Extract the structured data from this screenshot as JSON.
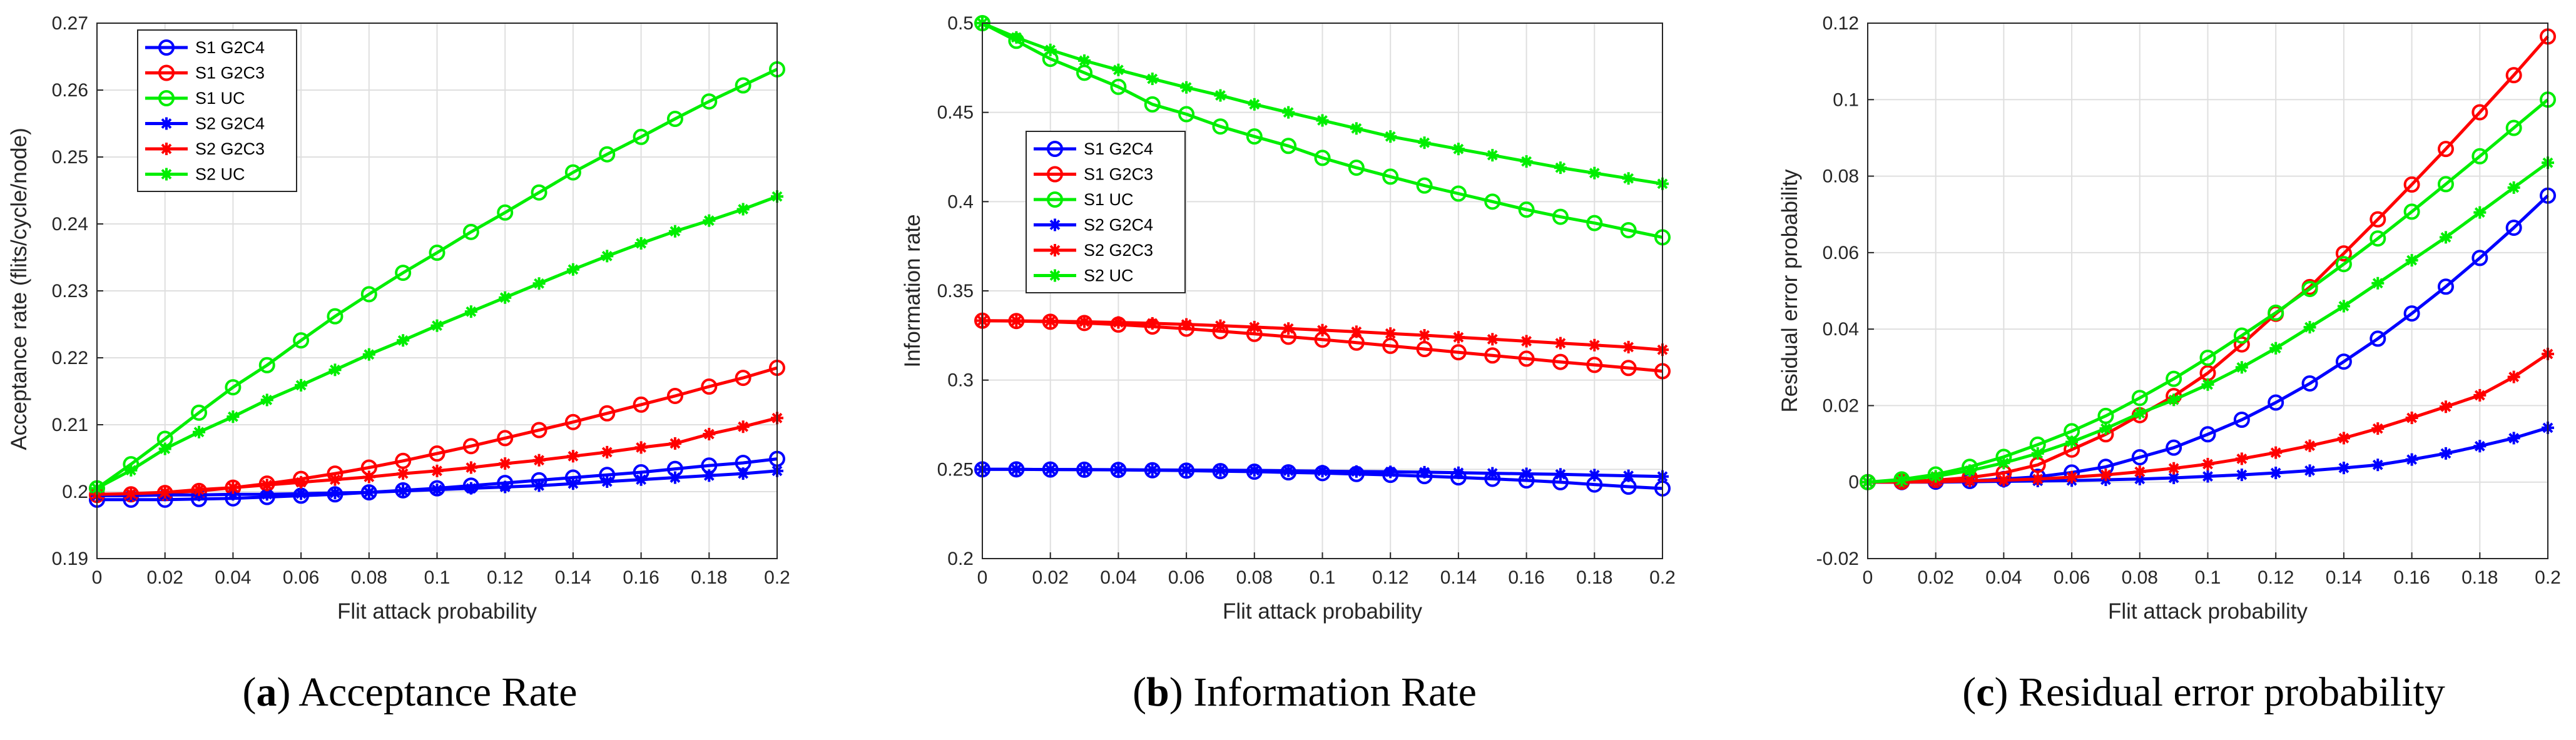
{
  "figure": {
    "x_values": [
      0,
      0.01,
      0.02,
      0.03,
      0.04,
      0.05,
      0.06,
      0.07,
      0.08,
      0.09,
      0.1,
      0.11,
      0.12,
      0.13,
      0.14,
      0.15,
      0.16,
      0.17,
      0.18,
      0.19,
      0.2
    ]
  },
  "chart_data": [
    {
      "type": "line",
      "panel_label": "a",
      "title": "Acceptance Rate",
      "xlabel": "Flit attack probability",
      "ylabel": "Acceptance rate (flits/cycle/node)",
      "xlim": [
        0,
        0.2
      ],
      "ylim": [
        0.19,
        0.27
      ],
      "xticks": [
        "0",
        "0.02",
        "0.04",
        "0.06",
        "0.08",
        "0.1",
        "0.12",
        "0.14",
        "0.16",
        "0.18",
        "0.2"
      ],
      "yticks": [
        "0.19",
        "0.2",
        "0.21",
        "0.22",
        "0.23",
        "0.24",
        "0.25",
        "0.26",
        "0.27"
      ],
      "grid": true,
      "legend_position": "top-left",
      "series": [
        {
          "name": "S1 G2C4",
          "color": "#0000ff",
          "marker": "circle",
          "values": [
            0.1988,
            0.1988,
            0.1988,
            0.1989,
            0.199,
            0.1992,
            0.1994,
            0.1996,
            0.1999,
            0.2002,
            0.2005,
            0.2009,
            0.2013,
            0.2017,
            0.2021,
            0.2025,
            0.2029,
            0.2034,
            0.2039,
            0.2043,
            0.2049
          ]
        },
        {
          "name": "S1 G2C3",
          "color": "#ff0000",
          "marker": "circle",
          "values": [
            0.1995,
            0.1996,
            0.1998,
            0.2001,
            0.2006,
            0.2012,
            0.2019,
            0.2027,
            0.2036,
            0.2046,
            0.2057,
            0.2068,
            0.208,
            0.2092,
            0.2104,
            0.2117,
            0.213,
            0.2143,
            0.2157,
            0.217,
            0.2185
          ]
        },
        {
          "name": "S1 UC",
          "color": "#00ee00",
          "marker": "circle",
          "values": [
            0.2005,
            0.2041,
            0.2079,
            0.2118,
            0.2156,
            0.2189,
            0.2226,
            0.2262,
            0.2295,
            0.2327,
            0.2357,
            0.2388,
            0.2417,
            0.2447,
            0.2477,
            0.2504,
            0.253,
            0.2557,
            0.2583,
            0.2607,
            0.2631
          ]
        },
        {
          "name": "S2 G2C4",
          "color": "#0000ff",
          "marker": "asterisk",
          "values": [
            0.1994,
            0.1994,
            0.1995,
            0.1995,
            0.1996,
            0.1996,
            0.1997,
            0.1998,
            0.1999,
            0.2001,
            0.2003,
            0.2005,
            0.2007,
            0.2009,
            0.2012,
            0.2015,
            0.2018,
            0.2021,
            0.2024,
            0.2027,
            0.2031
          ]
        },
        {
          "name": "S2 G2C3",
          "color": "#ff0000",
          "marker": "asterisk",
          "values": [
            0.1996,
            0.1997,
            0.1999,
            0.2003,
            0.2006,
            0.201,
            0.2014,
            0.2018,
            0.2022,
            0.2027,
            0.2031,
            0.2036,
            0.2042,
            0.2047,
            0.2053,
            0.2059,
            0.2066,
            0.2072,
            0.2086,
            0.2097,
            0.211
          ]
        },
        {
          "name": "S2 UC",
          "color": "#00ee00",
          "marker": "asterisk",
          "values": [
            0.2005,
            0.2032,
            0.2064,
            0.2089,
            0.2112,
            0.2137,
            0.2159,
            0.2182,
            0.2205,
            0.2226,
            0.2248,
            0.2269,
            0.229,
            0.2311,
            0.2332,
            0.2352,
            0.2371,
            0.2389,
            0.2405,
            0.2422,
            0.2441
          ]
        }
      ]
    },
    {
      "type": "line",
      "panel_label": "b",
      "title": "Information Rate",
      "xlabel": "Flit attack probability",
      "ylabel": "Information rate",
      "xlim": [
        0,
        0.2
      ],
      "ylim": [
        0.2,
        0.5
      ],
      "xticks": [
        "0",
        "0.02",
        "0.04",
        "0.06",
        "0.08",
        "0.1",
        "0.12",
        "0.14",
        "0.16",
        "0.18",
        "0.2"
      ],
      "yticks": [
        "0.2",
        "0.25",
        "0.3",
        "0.35",
        "0.4",
        "0.45",
        "0.5"
      ],
      "grid": true,
      "legend_position": "upper-left",
      "series": [
        {
          "name": "S1 G2C4",
          "color": "#0000ff",
          "marker": "circle",
          "values": [
            0.25,
            0.25,
            0.2499,
            0.2498,
            0.2497,
            0.2495,
            0.2493,
            0.249,
            0.2487,
            0.2483,
            0.2479,
            0.2474,
            0.2469,
            0.2462,
            0.2455,
            0.2447,
            0.2438,
            0.2428,
            0.2415,
            0.2403,
            0.2393
          ]
        },
        {
          "name": "S1 G2C3",
          "color": "#ff0000",
          "marker": "circle",
          "values": [
            0.3333,
            0.3331,
            0.3327,
            0.332,
            0.3311,
            0.33,
            0.3288,
            0.3274,
            0.3259,
            0.3243,
            0.3227,
            0.321,
            0.3192,
            0.3174,
            0.3156,
            0.3138,
            0.312,
            0.3102,
            0.3085,
            0.3068,
            0.305
          ]
        },
        {
          "name": "S1 UC",
          "color": "#00ee00",
          "marker": "circle",
          "values": [
            0.5,
            0.4901,
            0.48,
            0.4722,
            0.4643,
            0.4545,
            0.449,
            0.4421,
            0.4365,
            0.4312,
            0.4245,
            0.419,
            0.414,
            0.409,
            0.4045,
            0.4,
            0.3955,
            0.3915,
            0.388,
            0.384,
            0.38
          ]
        },
        {
          "name": "S2 G2C4",
          "color": "#0000ff",
          "marker": "asterisk",
          "values": [
            0.25,
            0.25,
            0.2499,
            0.2499,
            0.2498,
            0.2497,
            0.2496,
            0.2495,
            0.2494,
            0.2492,
            0.249,
            0.2488,
            0.2486,
            0.2484,
            0.2481,
            0.2478,
            0.2475,
            0.2472,
            0.2468,
            0.2464,
            0.246
          ]
        },
        {
          "name": "S2 G2C3",
          "color": "#ff0000",
          "marker": "asterisk",
          "values": [
            0.3333,
            0.3332,
            0.333,
            0.3327,
            0.3323,
            0.3318,
            0.3312,
            0.3305,
            0.3297,
            0.3289,
            0.328,
            0.3271,
            0.3261,
            0.3251,
            0.324,
            0.3229,
            0.3218,
            0.3207,
            0.3196,
            0.3185,
            0.317
          ]
        },
        {
          "name": "S2 UC",
          "color": "#00ee00",
          "marker": "asterisk",
          "values": [
            0.5,
            0.492,
            0.485,
            0.479,
            0.4738,
            0.4688,
            0.464,
            0.4595,
            0.4545,
            0.45,
            0.4455,
            0.441,
            0.4365,
            0.433,
            0.4295,
            0.426,
            0.4225,
            0.419,
            0.416,
            0.413,
            0.41
          ]
        }
      ]
    },
    {
      "type": "line",
      "panel_label": "c",
      "title": "Residual error probability",
      "xlabel": "Flit attack probability",
      "ylabel": "Residual error probability",
      "xlim": [
        0,
        0.2
      ],
      "ylim": [
        -0.02,
        0.12
      ],
      "xticks": [
        "0",
        "0.02",
        "0.04",
        "0.06",
        "0.08",
        "0.1",
        "0.12",
        "0.14",
        "0.16",
        "0.18",
        "0.2"
      ],
      "yticks": [
        "-0.02",
        "0",
        "0.02",
        "0.04",
        "0.06",
        "0.08",
        "0.1",
        "0.12"
      ],
      "grid": true,
      "legend_position": "none",
      "series": [
        {
          "name": "S1 G2C4",
          "color": "#0000ff",
          "marker": "circle",
          "values": [
            0.0,
            0.0,
            0.0001,
            0.0003,
            0.0008,
            0.0014,
            0.0025,
            0.004,
            0.0065,
            0.009,
            0.0125,
            0.0163,
            0.0208,
            0.0258,
            0.0315,
            0.0375,
            0.0441,
            0.0511,
            0.0586,
            0.0665,
            0.0749
          ]
        },
        {
          "name": "S1 G2C3",
          "color": "#ff0000",
          "marker": "circle",
          "values": [
            0.0,
            0.0001,
            0.0005,
            0.0012,
            0.0024,
            0.0045,
            0.0085,
            0.0125,
            0.0175,
            0.0225,
            0.0285,
            0.036,
            0.044,
            0.051,
            0.0598,
            0.0687,
            0.0778,
            0.0871,
            0.0967,
            0.1064,
            0.1165
          ]
        },
        {
          "name": "S1 UC",
          "color": "#00ee00",
          "marker": "circle",
          "values": [
            0.0,
            0.0007,
            0.002,
            0.004,
            0.0066,
            0.0098,
            0.0133,
            0.0173,
            0.022,
            0.027,
            0.0325,
            0.0383,
            0.0443,
            0.0505,
            0.057,
            0.0637,
            0.0707,
            0.0779,
            0.0852,
            0.0926,
            0.1
          ]
        },
        {
          "name": "S2 G2C4",
          "color": "#0000ff",
          "marker": "asterisk",
          "values": [
            0.0,
            0.0,
            0.0,
            0.0001,
            0.0002,
            0.0003,
            0.0004,
            0.0006,
            0.0008,
            0.0011,
            0.0015,
            0.0019,
            0.0024,
            0.003,
            0.0037,
            0.0045,
            0.0059,
            0.0075,
            0.0094,
            0.0115,
            0.0142
          ]
        },
        {
          "name": "S2 G2C3",
          "color": "#ff0000",
          "marker": "asterisk",
          "values": [
            0.0,
            0.0,
            0.0001,
            0.0003,
            0.0005,
            0.0008,
            0.0013,
            0.0019,
            0.0027,
            0.0036,
            0.0047,
            0.0061,
            0.0077,
            0.0095,
            0.0115,
            0.014,
            0.0168,
            0.0197,
            0.0227,
            0.0275,
            0.0335
          ]
        },
        {
          "name": "S2 UC",
          "color": "#00ee00",
          "marker": "asterisk",
          "values": [
            0.0,
            0.0005,
            0.0015,
            0.003,
            0.005,
            0.0075,
            0.0105,
            0.014,
            0.018,
            0.0215,
            0.0255,
            0.03,
            0.035,
            0.0405,
            0.046,
            0.052,
            0.058,
            0.064,
            0.0705,
            0.077,
            0.0835
          ]
        }
      ]
    }
  ]
}
